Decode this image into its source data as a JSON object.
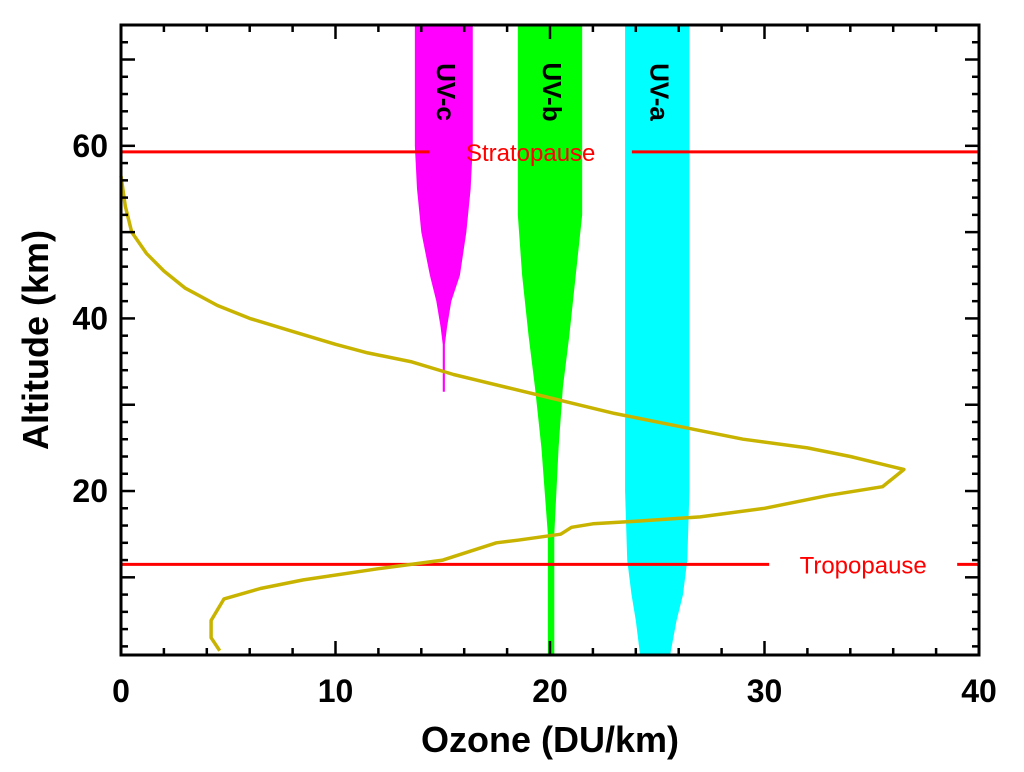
{
  "chart_data": {
    "type": "line",
    "xlabel": "Ozone (DU/km)",
    "ylabel": "Altitude (km)",
    "xlim": [
      0,
      40
    ],
    "ylim": [
      1,
      74
    ],
    "x_ticks": [
      {
        "value": 0,
        "label": "0"
      },
      {
        "value": 10,
        "label": "10"
      },
      {
        "value": 20,
        "label": "20"
      },
      {
        "value": 30,
        "label": "30"
      },
      {
        "value": 40,
        "label": "40"
      }
    ],
    "y_ticks": [
      {
        "value": 20,
        "label": "20"
      },
      {
        "value": 40,
        "label": "40"
      },
      {
        "value": 60,
        "label": "60"
      }
    ],
    "grid": false,
    "series": [
      {
        "color": "#c8b400",
        "points": [
          [
            0.0,
            56.5
          ],
          [
            0.2,
            53.0
          ],
          [
            0.5,
            50.0
          ],
          [
            1.2,
            47.5
          ],
          [
            2.0,
            45.5
          ],
          [
            3.0,
            43.5
          ],
          [
            4.5,
            41.5
          ],
          [
            6.0,
            40.0
          ],
          [
            8.0,
            38.5
          ],
          [
            10.0,
            37.0
          ],
          [
            11.5,
            36.0
          ],
          [
            13.5,
            35.0
          ],
          [
            15.5,
            33.5
          ],
          [
            18.0,
            32.0
          ],
          [
            20.5,
            30.5
          ],
          [
            23.0,
            29.0
          ],
          [
            26.0,
            27.5
          ],
          [
            29.0,
            26.0
          ],
          [
            32.0,
            25.0
          ],
          [
            34.0,
            24.0
          ],
          [
            36.5,
            22.5
          ],
          [
            35.5,
            20.5
          ],
          [
            33.0,
            19.5
          ],
          [
            30.0,
            18.0
          ],
          [
            27.0,
            17.0
          ],
          [
            24.0,
            16.5
          ],
          [
            22.0,
            16.2
          ],
          [
            21.0,
            15.8
          ],
          [
            20.5,
            15.0
          ],
          [
            18.5,
            14.3
          ],
          [
            17.5,
            14.0
          ],
          [
            15.0,
            12.0
          ],
          [
            12.0,
            11.0
          ],
          [
            8.5,
            9.7
          ],
          [
            6.5,
            8.7
          ],
          [
            4.8,
            7.5
          ],
          [
            4.2,
            5.0
          ],
          [
            4.2,
            3.0
          ],
          [
            4.6,
            1.5
          ]
        ]
      }
    ],
    "bands": [
      {
        "label": "UV-c",
        "color": "#ff00ff",
        "profile": [
          [
            74,
            13.7,
            16.4
          ],
          [
            60,
            13.7,
            16.4
          ],
          [
            55,
            13.8,
            16.3
          ],
          [
            50,
            14.0,
            16.1
          ],
          [
            45,
            14.4,
            15.8
          ],
          [
            42,
            14.7,
            15.4
          ],
          [
            39,
            14.9,
            15.2
          ],
          [
            37,
            15.0,
            15.1
          ],
          [
            31.5,
            15.0,
            15.1
          ]
        ]
      },
      {
        "label": "UV-b",
        "color": "#00ff00",
        "profile": [
          [
            74,
            18.5,
            21.5
          ],
          [
            52,
            18.5,
            21.5
          ],
          [
            45,
            18.7,
            21.2
          ],
          [
            38,
            19.0,
            20.9
          ],
          [
            32,
            19.3,
            20.6
          ],
          [
            25,
            19.6,
            20.4
          ],
          [
            15,
            19.9,
            20.2
          ],
          [
            1,
            19.9,
            20.2
          ]
        ]
      },
      {
        "label": "UV-a",
        "color": "#00ffff",
        "profile": [
          [
            74,
            23.5,
            26.5
          ],
          [
            20,
            23.5,
            26.5
          ],
          [
            12,
            23.6,
            26.4
          ],
          [
            8,
            23.8,
            26.2
          ],
          [
            5,
            24.0,
            25.9
          ],
          [
            1,
            24.2,
            25.6
          ]
        ]
      }
    ],
    "reference_lines": [
      {
        "label": "Stratopause",
        "y": 59.3,
        "color": "#ff0000",
        "label_x": 19.1
      },
      {
        "label": "Tropopause",
        "y": 11.5,
        "color": "#ff0000",
        "label_x": 34.6
      }
    ]
  }
}
